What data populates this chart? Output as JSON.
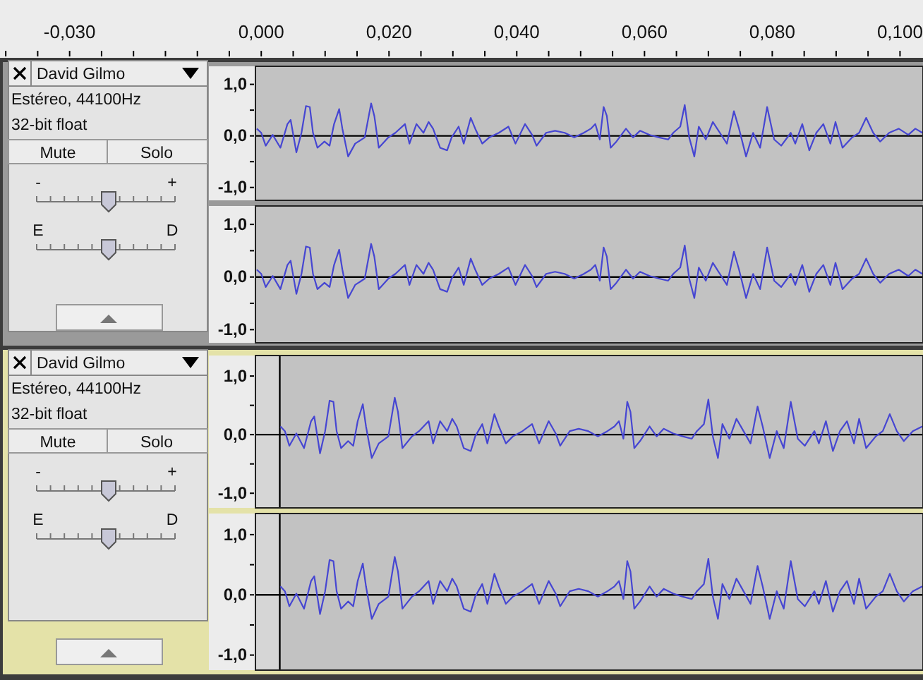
{
  "chart_data": [
    {
      "type": "line",
      "color": "#4646d2",
      "xlim": [
        -0.0409,
        0.1036
      ],
      "ylim": [
        -1.25,
        1.35
      ],
      "yticks": [
        {
          "value": 1,
          "label": "1,0"
        },
        {
          "value": 0.5,
          "label": null
        },
        {
          "value": 0,
          "label": "0,0"
        },
        {
          "value": -0.5,
          "label": null
        },
        {
          "value": -1,
          "label": "-1,0"
        }
      ],
      "xticks": [
        {
          "value": -0.04,
          "label": null
        },
        {
          "value": -0.035,
          "label": null
        },
        {
          "value": -0.03,
          "label": "-0,030"
        },
        {
          "value": -0.025,
          "label": null
        },
        {
          "value": -0.02,
          "label": null
        },
        {
          "value": -0.015,
          "label": null
        },
        {
          "value": -0.01,
          "label": null
        },
        {
          "value": -0.005,
          "label": null
        },
        {
          "value": 0,
          "label": "0,000"
        },
        {
          "value": 0.005,
          "label": null
        },
        {
          "value": 0.01,
          "label": null
        },
        {
          "value": 0.015,
          "label": null
        },
        {
          "value": 0.02,
          "label": "0,020"
        },
        {
          "value": 0.025,
          "label": null
        },
        {
          "value": 0.03,
          "label": null
        },
        {
          "value": 0.035,
          "label": null
        },
        {
          "value": 0.04,
          "label": "0,040"
        },
        {
          "value": 0.045,
          "label": null
        },
        {
          "value": 0.05,
          "label": null
        },
        {
          "value": 0.055,
          "label": null
        },
        {
          "value": 0.06,
          "label": "0,060"
        },
        {
          "value": 0.065,
          "label": null
        },
        {
          "value": 0.07,
          "label": null
        },
        {
          "value": 0.075,
          "label": null
        },
        {
          "value": 0.08,
          "label": "0,080"
        },
        {
          "value": 0.085,
          "label": null
        },
        {
          "value": 0.09,
          "label": null
        },
        {
          "value": 0.095,
          "label": null
        },
        {
          "value": 0.1,
          "label": "0,100"
        }
      ],
      "bands": [
        {
          "axis": "x",
          "from": -0.0009,
          "to": 0.1036,
          "color": "#c2c2c2"
        }
      ],
      "ref_lines": [
        {
          "axis": "y",
          "value": 0,
          "color": "#000000"
        }
      ],
      "annotations": [
        "David Gilmo",
        "Estéreo, 44100Hz",
        "32-bit float",
        "Mute",
        "Solo",
        "-",
        "+",
        "E",
        "D"
      ],
      "x": [
        -0.0007,
        0.0,
        0.0007,
        0.0018,
        0.003,
        0.0041,
        0.0046,
        0.0055,
        0.0063,
        0.007,
        0.0076,
        0.0081,
        0.0088,
        0.0099,
        0.0107,
        0.0114,
        0.0122,
        0.0127,
        0.0136,
        0.0147,
        0.0162,
        0.0172,
        0.0177,
        0.0184,
        0.0199,
        0.021,
        0.0225,
        0.0232,
        0.0243,
        0.0254,
        0.0262,
        0.0269,
        0.028,
        0.0291,
        0.0298,
        0.0309,
        0.0317,
        0.0328,
        0.0335,
        0.0346,
        0.0357,
        0.0372,
        0.0387,
        0.0398,
        0.0413,
        0.0424,
        0.0431,
        0.0446,
        0.046,
        0.0475,
        0.049,
        0.0505,
        0.0516,
        0.0523,
        0.053,
        0.0536,
        0.0541,
        0.0547,
        0.0556,
        0.0571,
        0.0582,
        0.0593,
        0.0608,
        0.0623,
        0.0637,
        0.0645,
        0.0656,
        0.0663,
        0.067,
        0.0678,
        0.0685,
        0.0696,
        0.0707,
        0.0718,
        0.0729,
        0.074,
        0.0748,
        0.0759,
        0.077,
        0.0781,
        0.0792,
        0.0803,
        0.0814,
        0.0829,
        0.0836,
        0.0847,
        0.0858,
        0.0869,
        0.088,
        0.0891,
        0.0899,
        0.091,
        0.0925,
        0.0936,
        0.0947,
        0.0958,
        0.0969,
        0.0983,
        0.0998,
        0.1013,
        0.1024,
        0.1035
      ],
      "values": [
        0.14,
        0.06,
        -0.19,
        0.02,
        -0.23,
        0.23,
        0.31,
        -0.32,
        0.06,
        0.58,
        0.56,
        0.06,
        -0.23,
        -0.11,
        -0.19,
        0.23,
        0.52,
        0.14,
        -0.4,
        -0.15,
        -0.03,
        0.63,
        0.39,
        -0.23,
        -0.03,
        0.06,
        0.23,
        -0.15,
        0.23,
        0.06,
        0.27,
        0.14,
        -0.23,
        -0.28,
        -0.03,
        0.18,
        -0.15,
        0.35,
        0.14,
        -0.15,
        -0.03,
        0.06,
        0.18,
        -0.15,
        0.23,
        0.02,
        -0.19,
        0.06,
        0.1,
        0.06,
        -0.03,
        0.06,
        0.14,
        0.23,
        -0.07,
        0.56,
        0.39,
        -0.23,
        -0.11,
        0.14,
        -0.03,
        0.1,
        0.02,
        -0.03,
        -0.07,
        0.06,
        0.18,
        0.6,
        -0.03,
        -0.4,
        0.18,
        -0.07,
        0.27,
        0.06,
        -0.15,
        0.48,
        0.14,
        -0.4,
        0.06,
        -0.23,
        0.56,
        -0.07,
        -0.19,
        0.06,
        -0.15,
        0.23,
        -0.28,
        0.06,
        0.23,
        -0.15,
        0.27,
        -0.23,
        -0.03,
        0.06,
        0.35,
        0.06,
        -0.11,
        0.06,
        0.14,
        0.02,
        0.14,
        0.06
      ]
    },
    {
      "type": "line",
      "color": "#4646d2",
      "xlim": [
        -0.0409,
        0.1036
      ],
      "ylim": [
        -1.25,
        1.35
      ],
      "tick_labels": "y",
      "yticks": [
        {
          "value": 1,
          "label": "1,0"
        },
        {
          "value": 0.5,
          "label": null
        },
        {
          "value": 0,
          "label": "0,0"
        },
        {
          "value": -0.5,
          "label": null
        },
        {
          "value": -1,
          "label": "-1,0"
        }
      ],
      "bands": [
        {
          "axis": "x",
          "from": -0.0009,
          "to": 0.1036,
          "color": "#c2c2c2"
        }
      ],
      "ref_lines": [
        {
          "axis": "y",
          "value": 0,
          "color": "#000000"
        }
      ],
      "x": [
        -0.0007,
        0.0,
        0.0007,
        0.0018,
        0.003,
        0.0041,
        0.0046,
        0.0055,
        0.0063,
        0.007,
        0.0076,
        0.0081,
        0.0088,
        0.0099,
        0.0107,
        0.0114,
        0.0122,
        0.0127,
        0.0136,
        0.0147,
        0.0162,
        0.0172,
        0.0177,
        0.0184,
        0.0199,
        0.021,
        0.0225,
        0.0232,
        0.0243,
        0.0254,
        0.0262,
        0.0269,
        0.028,
        0.0291,
        0.0298,
        0.0309,
        0.0317,
        0.0328,
        0.0335,
        0.0346,
        0.0357,
        0.0372,
        0.0387,
        0.0398,
        0.0413,
        0.0424,
        0.0431,
        0.0446,
        0.046,
        0.0475,
        0.049,
        0.0505,
        0.0516,
        0.0523,
        0.053,
        0.0536,
        0.0541,
        0.0547,
        0.0556,
        0.0571,
        0.0582,
        0.0593,
        0.0608,
        0.0623,
        0.0637,
        0.0645,
        0.0656,
        0.0663,
        0.067,
        0.0678,
        0.0685,
        0.0696,
        0.0707,
        0.0718,
        0.0729,
        0.074,
        0.0748,
        0.0759,
        0.077,
        0.0781,
        0.0792,
        0.0803,
        0.0814,
        0.0829,
        0.0836,
        0.0847,
        0.0858,
        0.0869,
        0.088,
        0.0891,
        0.0899,
        0.091,
        0.0925,
        0.0936,
        0.0947,
        0.0958,
        0.0969,
        0.0983,
        0.0998,
        0.1013,
        0.1024,
        0.1035
      ],
      "values": [
        0.14,
        0.06,
        -0.19,
        0.02,
        -0.23,
        0.23,
        0.31,
        -0.32,
        0.06,
        0.58,
        0.56,
        0.06,
        -0.23,
        -0.11,
        -0.19,
        0.23,
        0.52,
        0.14,
        -0.4,
        -0.15,
        -0.03,
        0.63,
        0.39,
        -0.23,
        -0.03,
        0.06,
        0.23,
        -0.15,
        0.23,
        0.06,
        0.27,
        0.14,
        -0.23,
        -0.28,
        -0.03,
        0.18,
        -0.15,
        0.35,
        0.14,
        -0.15,
        -0.03,
        0.06,
        0.18,
        -0.15,
        0.23,
        0.02,
        -0.19,
        0.06,
        0.1,
        0.06,
        -0.03,
        0.06,
        0.14,
        0.23,
        -0.07,
        0.56,
        0.39,
        -0.23,
        -0.11,
        0.14,
        -0.03,
        0.1,
        0.02,
        -0.03,
        -0.07,
        0.06,
        0.18,
        0.6,
        -0.03,
        -0.4,
        0.18,
        -0.07,
        0.27,
        0.06,
        -0.15,
        0.48,
        0.14,
        -0.4,
        0.06,
        -0.23,
        0.56,
        -0.07,
        -0.19,
        0.06,
        -0.15,
        0.23,
        -0.28,
        0.06,
        0.23,
        -0.15,
        0.27,
        -0.23,
        -0.03,
        0.06,
        0.35,
        0.06,
        -0.11,
        0.06,
        0.14,
        0.02,
        0.14,
        0.06
      ]
    },
    {
      "type": "line",
      "color": "#4646d2",
      "xlim": [
        -0.0409,
        0.1036
      ],
      "ylim": [
        -1.25,
        1.35
      ],
      "tick_labels": "y",
      "yticks": [
        {
          "value": 1,
          "label": "1,0"
        },
        {
          "value": 0.5,
          "label": null
        },
        {
          "value": 0,
          "label": "0,0"
        },
        {
          "value": -0.5,
          "label": null
        },
        {
          "value": -1,
          "label": "-1,0"
        }
      ],
      "bands": [
        {
          "axis": "x",
          "from": -0.0009,
          "to": 0.0029,
          "color": "#d6d6d6"
        },
        {
          "axis": "x",
          "from": 0.0029,
          "to": 0.1036,
          "color": "#c2c2c2"
        }
      ],
      "ref_lines": [
        {
          "axis": "y",
          "value": 0,
          "color": "#000000"
        },
        {
          "axis": "x",
          "value": 0.0029,
          "color": "#000000"
        }
      ],
      "annotations": [
        "David Gilmo",
        "Estéreo, 44100Hz",
        "32-bit float",
        "Mute",
        "Solo",
        "-",
        "+",
        "E",
        "D"
      ],
      "x": [
        0.003,
        0.0037,
        0.0044,
        0.0055,
        0.0067,
        0.0078,
        0.0083,
        0.0092,
        0.01,
        0.0107,
        0.0113,
        0.0118,
        0.0125,
        0.0136,
        0.0144,
        0.0151,
        0.0159,
        0.0164,
        0.0173,
        0.0184,
        0.0199,
        0.0209,
        0.0214,
        0.0221,
        0.0236,
        0.0247,
        0.0262,
        0.0269,
        0.028,
        0.0291,
        0.0299,
        0.0306,
        0.0317,
        0.0328,
        0.0335,
        0.0346,
        0.0354,
        0.0365,
        0.0372,
        0.0383,
        0.0394,
        0.0409,
        0.0424,
        0.0435,
        0.045,
        0.0461,
        0.0468,
        0.0483,
        0.0497,
        0.0512,
        0.0527,
        0.0542,
        0.0553,
        0.056,
        0.0567,
        0.0573,
        0.0578,
        0.0584,
        0.0593,
        0.0608,
        0.0619,
        0.063,
        0.0645,
        0.066,
        0.0674,
        0.0682,
        0.0693,
        0.07,
        0.0707,
        0.0715,
        0.0722,
        0.0733,
        0.0744,
        0.0755,
        0.0766,
        0.0777,
        0.0785,
        0.0796,
        0.0807,
        0.0818,
        0.0829,
        0.084,
        0.0851,
        0.0866,
        0.0873,
        0.0884,
        0.0895,
        0.0906,
        0.0917,
        0.0928,
        0.0936,
        0.0947,
        0.0962,
        0.0973,
        0.0984,
        0.0995,
        0.1006,
        0.102,
        0.1035
      ],
      "values": [
        0.14,
        0.06,
        -0.19,
        0.02,
        -0.23,
        0.23,
        0.31,
        -0.32,
        0.06,
        0.58,
        0.56,
        0.06,
        -0.23,
        -0.11,
        -0.19,
        0.23,
        0.52,
        0.14,
        -0.4,
        -0.15,
        -0.03,
        0.63,
        0.39,
        -0.23,
        -0.03,
        0.06,
        0.23,
        -0.15,
        0.23,
        0.06,
        0.27,
        0.14,
        -0.23,
        -0.28,
        -0.03,
        0.18,
        -0.15,
        0.35,
        0.14,
        -0.15,
        -0.03,
        0.06,
        0.18,
        -0.15,
        0.23,
        0.02,
        -0.19,
        0.06,
        0.1,
        0.06,
        -0.03,
        0.06,
        0.14,
        0.23,
        -0.07,
        0.56,
        0.39,
        -0.23,
        -0.11,
        0.14,
        -0.03,
        0.1,
        0.02,
        -0.03,
        -0.07,
        0.06,
        0.18,
        0.6,
        -0.03,
        -0.4,
        0.18,
        -0.07,
        0.27,
        0.06,
        -0.15,
        0.48,
        0.14,
        -0.4,
        0.06,
        -0.23,
        0.56,
        -0.07,
        -0.19,
        0.06,
        -0.15,
        0.23,
        -0.28,
        0.06,
        0.23,
        -0.15,
        0.27,
        -0.23,
        -0.03,
        0.06,
        0.35,
        0.06,
        -0.11,
        0.06,
        0.14
      ]
    },
    {
      "type": "line",
      "color": "#4646d2",
      "xlim": [
        -0.0409,
        0.1036
      ],
      "ylim": [
        -1.25,
        1.35
      ],
      "tick_labels": "y",
      "yticks": [
        {
          "value": 1,
          "label": "1,0"
        },
        {
          "value": 0.5,
          "label": null
        },
        {
          "value": 0,
          "label": "0,0"
        },
        {
          "value": -0.5,
          "label": null
        },
        {
          "value": -1,
          "label": "-1,0"
        }
      ],
      "bands": [
        {
          "axis": "x",
          "from": -0.0009,
          "to": 0.0029,
          "color": "#d6d6d6"
        },
        {
          "axis": "x",
          "from": 0.0029,
          "to": 0.1036,
          "color": "#c2c2c2"
        }
      ],
      "ref_lines": [
        {
          "axis": "y",
          "value": 0,
          "color": "#000000"
        },
        {
          "axis": "x",
          "value": 0.0029,
          "color": "#000000"
        }
      ],
      "x": [
        0.003,
        0.0037,
        0.0044,
        0.0055,
        0.0067,
        0.0078,
        0.0083,
        0.0092,
        0.01,
        0.0107,
        0.0113,
        0.0118,
        0.0125,
        0.0136,
        0.0144,
        0.0151,
        0.0159,
        0.0164,
        0.0173,
        0.0184,
        0.0199,
        0.0209,
        0.0214,
        0.0221,
        0.0236,
        0.0247,
        0.0262,
        0.0269,
        0.028,
        0.0291,
        0.0299,
        0.0306,
        0.0317,
        0.0328,
        0.0335,
        0.0346,
        0.0354,
        0.0365,
        0.0372,
        0.0383,
        0.0394,
        0.0409,
        0.0424,
        0.0435,
        0.045,
        0.0461,
        0.0468,
        0.0483,
        0.0497,
        0.0512,
        0.0527,
        0.0542,
        0.0553,
        0.056,
        0.0567,
        0.0573,
        0.0578,
        0.0584,
        0.0593,
        0.0608,
        0.0619,
        0.063,
        0.0645,
        0.066,
        0.0674,
        0.0682,
        0.0693,
        0.07,
        0.0707,
        0.0715,
        0.0722,
        0.0733,
        0.0744,
        0.0755,
        0.0766,
        0.0777,
        0.0785,
        0.0796,
        0.0807,
        0.0818,
        0.0829,
        0.084,
        0.0851,
        0.0866,
        0.0873,
        0.0884,
        0.0895,
        0.0906,
        0.0917,
        0.0928,
        0.0936,
        0.0947,
        0.0962,
        0.0973,
        0.0984,
        0.0995,
        0.1006,
        0.102,
        0.1035
      ],
      "values": [
        0.14,
        0.06,
        -0.19,
        0.02,
        -0.23,
        0.23,
        0.31,
        -0.32,
        0.06,
        0.58,
        0.56,
        0.06,
        -0.23,
        -0.11,
        -0.19,
        0.23,
        0.52,
        0.14,
        -0.4,
        -0.15,
        -0.03,
        0.63,
        0.39,
        -0.23,
        -0.03,
        0.06,
        0.23,
        -0.15,
        0.23,
        0.06,
        0.27,
        0.14,
        -0.23,
        -0.28,
        -0.03,
        0.18,
        -0.15,
        0.35,
        0.14,
        -0.15,
        -0.03,
        0.06,
        0.18,
        -0.15,
        0.23,
        0.02,
        -0.19,
        0.06,
        0.1,
        0.06,
        -0.03,
        0.06,
        0.14,
        0.23,
        -0.07,
        0.56,
        0.39,
        -0.23,
        -0.11,
        0.14,
        -0.03,
        0.1,
        0.02,
        -0.03,
        -0.07,
        0.06,
        0.18,
        0.6,
        -0.03,
        -0.4,
        0.18,
        -0.07,
        0.27,
        0.06,
        -0.15,
        0.48,
        0.14,
        -0.4,
        0.06,
        -0.23,
        0.56,
        -0.07,
        -0.19,
        0.06,
        -0.15,
        0.23,
        -0.28,
        0.06,
        0.23,
        -0.15,
        0.27,
        -0.23,
        -0.03,
        0.06,
        0.35,
        0.06,
        -0.11,
        0.06,
        0.14
      ]
    }
  ]
}
